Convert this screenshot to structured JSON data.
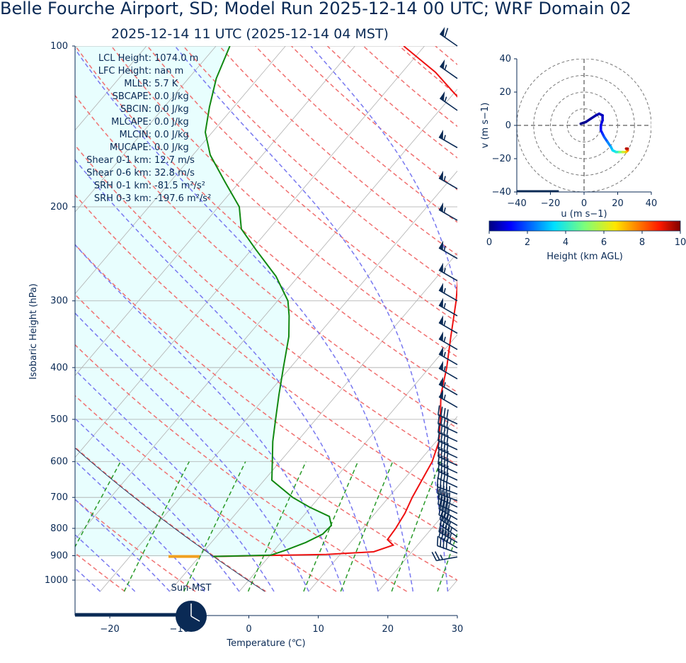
{
  "title": "Belle Fourche Airport, SD; Model Run 2025-12-14 00 UTC; WRF Domain 02",
  "subtitle": "2025-12-14 11 UTC  (2025-12-14 04 MST)",
  "colors": {
    "text": "#0a2a55",
    "temperature": "#ee1111",
    "dewpoint": "#118811",
    "dry_adiabat": "#f07070",
    "moist_adiabat": "#7878f0",
    "mixing_ratio": "#2a9a2a",
    "isotherm": "#aaaaaa",
    "cape_shade": "#e8fefe",
    "barb": "#0a2a55"
  },
  "stats": [
    {
      "label": "LCL Height:",
      "value": "1074.0 m"
    },
    {
      "label": "LFC Height:",
      "value": "nan m"
    },
    {
      "label": "MLLR:",
      "value": "5.7 K"
    },
    {
      "label": "SBCAPE:",
      "value": "0.0 J/kg"
    },
    {
      "label": "SBCIN:",
      "value": "0.0 J/kg"
    },
    {
      "label": "MLCAPE:",
      "value": "0.0 J/kg"
    },
    {
      "label": "MLCIN:",
      "value": "0.0 J/kg"
    },
    {
      "label": "MUCAPE:",
      "value": "0.0 J/kg"
    },
    {
      "label": "Shear 0-1 km:",
      "value": "12.7 m/s"
    },
    {
      "label": "Shear 0-6 km:",
      "value": "32.8 m/s"
    },
    {
      "label": "SRH 0-1 km:",
      "value": "-81.5 m²/s²"
    },
    {
      "label": "SRH 0-3 km:",
      "value": "-197.6 m²/s²"
    }
  ],
  "sun_label": "Sun-MST",
  "chart_data": [
    {
      "type": "skewt",
      "xlabel": "Temperature (℃)",
      "ylabel": "Isobaric Height (hPa)",
      "xlim": [
        -25,
        30
      ],
      "ylim": [
        1050,
        100
      ],
      "x_ticks": [
        -20,
        -10,
        0,
        10,
        20,
        30
      ],
      "x_tick_labels": [
        "−20",
        "−10",
        "0",
        "10",
        "20",
        "30"
      ],
      "y_ticks": [
        100,
        200,
        300,
        400,
        500,
        600,
        700,
        800,
        900,
        1000
      ],
      "y_tick_labels": [
        "100",
        "200",
        "300",
        "400",
        "500",
        "600",
        "700",
        "800",
        "900",
        "1000"
      ],
      "temperature": [
        [
          903,
          -7.9
        ],
        [
          895,
          8.0
        ],
        [
          885,
          14.5
        ],
        [
          860,
          16.5
        ],
        [
          840,
          15.0
        ],
        [
          800,
          14.8
        ],
        [
          750,
          14.3
        ],
        [
          700,
          13.4
        ],
        [
          600,
          11.9
        ],
        [
          550,
          10.4
        ],
        [
          500,
          7.9
        ],
        [
          450,
          5.0
        ],
        [
          400,
          2.5
        ],
        [
          350,
          -0.7
        ],
        [
          300,
          -4.3
        ],
        [
          270,
          -7.0
        ],
        [
          250,
          -9.2
        ],
        [
          220,
          -12.4
        ],
        [
          200,
          -15.3
        ],
        [
          180,
          -18.5
        ],
        [
          160,
          -20.2
        ],
        [
          140,
          -24.3
        ],
        [
          125,
          -28.8
        ],
        [
          112,
          -35.2
        ],
        [
          100,
          -43.0
        ]
      ],
      "dewpoint": [
        [
          903,
          -8.0
        ],
        [
          898,
          0.1
        ],
        [
          880,
          1.6
        ],
        [
          850,
          3.6
        ],
        [
          820,
          5.0
        ],
        [
          790,
          5.2
        ],
        [
          760,
          3.8
        ],
        [
          730,
          -0.2
        ],
        [
          700,
          -3.8
        ],
        [
          650,
          -8.9
        ],
        [
          600,
          -11.1
        ],
        [
          550,
          -13.5
        ],
        [
          500,
          -15.8
        ],
        [
          450,
          -18.3
        ],
        [
          400,
          -21.0
        ],
        [
          350,
          -24.0
        ],
        [
          320,
          -26.5
        ],
        [
          300,
          -28.5
        ],
        [
          270,
          -33.2
        ],
        [
          240,
          -39.5
        ],
        [
          220,
          -44.0
        ],
        [
          200,
          -47.0
        ],
        [
          180,
          -52.0
        ],
        [
          160,
          -57.5
        ],
        [
          145,
          -61.0
        ],
        [
          130,
          -63.5
        ],
        [
          115,
          -66.0
        ],
        [
          100,
          -68.0
        ]
      ],
      "wind_barbs": [
        {
          "p": 905,
          "dir": 260,
          "speed_kt": 25
        },
        {
          "p": 890,
          "dir": 290,
          "speed_kt": 40
        },
        {
          "p": 870,
          "dir": 300,
          "speed_kt": 45
        },
        {
          "p": 850,
          "dir": 300,
          "speed_kt": 45
        },
        {
          "p": 830,
          "dir": 305,
          "speed_kt": 45
        },
        {
          "p": 810,
          "dir": 305,
          "speed_kt": 40
        },
        {
          "p": 790,
          "dir": 300,
          "speed_kt": 40
        },
        {
          "p": 770,
          "dir": 300,
          "speed_kt": 40
        },
        {
          "p": 750,
          "dir": 295,
          "speed_kt": 40
        },
        {
          "p": 730,
          "dir": 295,
          "speed_kt": 45
        },
        {
          "p": 710,
          "dir": 290,
          "speed_kt": 45
        },
        {
          "p": 690,
          "dir": 290,
          "speed_kt": 45
        },
        {
          "p": 670,
          "dir": 295,
          "speed_kt": 40
        },
        {
          "p": 650,
          "dir": 295,
          "speed_kt": 40
        },
        {
          "p": 630,
          "dir": 295,
          "speed_kt": 40
        },
        {
          "p": 610,
          "dir": 295,
          "speed_kt": 40
        },
        {
          "p": 590,
          "dir": 295,
          "speed_kt": 40
        },
        {
          "p": 570,
          "dir": 295,
          "speed_kt": 40
        },
        {
          "p": 550,
          "dir": 295,
          "speed_kt": 40
        },
        {
          "p": 530,
          "dir": 295,
          "speed_kt": 40
        },
        {
          "p": 510,
          "dir": 295,
          "speed_kt": 40
        },
        {
          "p": 475,
          "dir": 300,
          "speed_kt": 55
        },
        {
          "p": 450,
          "dir": 300,
          "speed_kt": 55
        },
        {
          "p": 420,
          "dir": 300,
          "speed_kt": 55
        },
        {
          "p": 395,
          "dir": 300,
          "speed_kt": 55
        },
        {
          "p": 370,
          "dir": 300,
          "speed_kt": 55
        },
        {
          "p": 345,
          "dir": 300,
          "speed_kt": 55
        },
        {
          "p": 320,
          "dir": 300,
          "speed_kt": 55
        },
        {
          "p": 300,
          "dir": 300,
          "speed_kt": 55
        },
        {
          "p": 275,
          "dir": 300,
          "speed_kt": 55
        },
        {
          "p": 250,
          "dir": 300,
          "speed_kt": 55
        },
        {
          "p": 212,
          "dir": 300,
          "speed_kt": 55
        },
        {
          "p": 185,
          "dir": 300,
          "speed_kt": 55
        },
        {
          "p": 155,
          "dir": 300,
          "speed_kt": 55
        },
        {
          "p": 132,
          "dir": 305,
          "speed_kt": 55
        },
        {
          "p": 115,
          "dir": 305,
          "speed_kt": 55
        },
        {
          "p": 100,
          "dir": 305,
          "speed_kt": 60
        }
      ]
    },
    {
      "type": "hodograph",
      "xlabel": "u (m s−1)",
      "ylabel": "v (m s−1)",
      "xlim": [
        -40,
        40
      ],
      "ylim": [
        -40,
        40
      ],
      "ticks": [
        -40,
        -20,
        0,
        20,
        40
      ],
      "tick_labels": [
        "−40",
        "−20",
        "0",
        "20",
        "40"
      ],
      "rings": [
        10,
        20,
        30,
        40
      ],
      "colorbar": {
        "label": "Height (km AGL)",
        "min": 0,
        "max": 10,
        "ticks": [
          0,
          2,
          4,
          6,
          8,
          10
        ]
      },
      "points": [
        {
          "u": -2,
          "v": 1,
          "h": 0.0
        },
        {
          "u": 1,
          "v": 2,
          "h": 0.1
        },
        {
          "u": 4,
          "v": 4,
          "h": 0.2
        },
        {
          "u": 7,
          "v": 6,
          "h": 0.3
        },
        {
          "u": 9,
          "v": 7,
          "h": 0.4
        },
        {
          "u": 11,
          "v": 6,
          "h": 0.5
        },
        {
          "u": 11,
          "v": 3,
          "h": 0.6
        },
        {
          "u": 10,
          "v": 0,
          "h": 0.8
        },
        {
          "u": 10,
          "v": -3,
          "h": 1.0
        },
        {
          "u": 11,
          "v": -5,
          "h": 1.3
        },
        {
          "u": 12,
          "v": -7,
          "h": 1.6
        },
        {
          "u": 14,
          "v": -10,
          "h": 2.0
        },
        {
          "u": 16,
          "v": -13,
          "h": 2.5
        },
        {
          "u": 17,
          "v": -15,
          "h": 3.0
        },
        {
          "u": 19,
          "v": -16,
          "h": 3.5
        },
        {
          "u": 21,
          "v": -16,
          "h": 4.0
        },
        {
          "u": 23,
          "v": -16,
          "h": 5.0
        },
        {
          "u": 25,
          "v": -16,
          "h": 6.0
        },
        {
          "u": 26,
          "v": -15,
          "h": 7.0
        },
        {
          "u": 25,
          "v": -14,
          "h": 8.0
        },
        {
          "u": 26,
          "v": -14,
          "h": 9.5
        }
      ]
    }
  ]
}
